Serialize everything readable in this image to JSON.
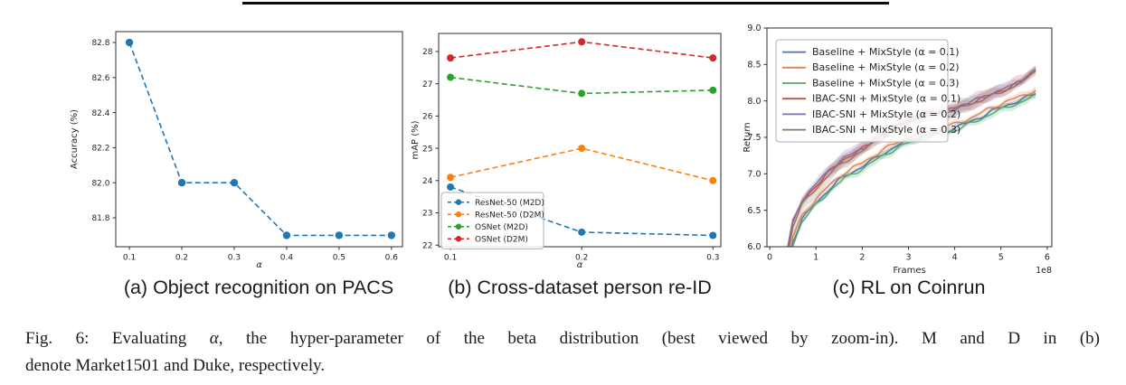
{
  "caption": {
    "line1_prefix": "Fig. 6: Evaluating ",
    "alpha": "α",
    "line1_suffix": ", the hyper-parameter of the beta distribution (best viewed by zoom-in). M and D in (b)",
    "line2": "denote Market1501 and Duke, respectively."
  },
  "chart_data": [
    {
      "type": "line",
      "title": "(a) Object recognition on PACS",
      "xlabel": "α",
      "ylabel": "Accuracy (%)",
      "xlim": [
        0.074,
        0.621
      ],
      "ylim": [
        81.635,
        82.862
      ],
      "xticks": [
        0.1,
        0.2,
        0.3,
        0.4,
        0.5,
        0.6
      ],
      "xtick_labels": [
        "0.1",
        "0.2",
        "0.3",
        "0.4",
        "0.5",
        "0.6"
      ],
      "yticks": [
        81.8,
        82.0,
        82.2,
        82.4,
        82.6,
        82.8
      ],
      "ytick_labels": [
        "81.8",
        "82.0",
        "82.2",
        "82.4",
        "82.6",
        "82.8"
      ],
      "grid": false,
      "legend_position": null,
      "x": [
        0.1,
        0.2,
        0.3,
        0.4,
        0.5,
        0.6
      ],
      "series": [
        {
          "name": "",
          "color": "#1f77b4",
          "dashed": true,
          "marker": true,
          "values": [
            82.8,
            82.0,
            82.0,
            81.7,
            81.7,
            81.7
          ]
        }
      ]
    },
    {
      "type": "line",
      "title": "(b) Cross-dataset person re-ID",
      "xlabel": "α",
      "ylabel": "mAP (%)",
      "xlim": [
        0.091,
        0.306
      ],
      "ylim": [
        21.95,
        28.56
      ],
      "xticks": [
        0.1,
        0.2,
        0.3
      ],
      "xtick_labels": [
        "0.1",
        "0.2",
        "0.3"
      ],
      "yticks": [
        22,
        23,
        24,
        25,
        26,
        27,
        28
      ],
      "ytick_labels": [
        "22",
        "23",
        "24",
        "25",
        "26",
        "27",
        "28"
      ],
      "grid": false,
      "legend_position": "lower left",
      "x": [
        0.1,
        0.2,
        0.3
      ],
      "series": [
        {
          "name": "ResNet-50 (M2D)",
          "color": "#1f77b4",
          "dashed": true,
          "marker": true,
          "values": [
            23.8,
            22.4,
            22.3
          ]
        },
        {
          "name": "ResNet-50 (D2M)",
          "color": "#ff7f0e",
          "dashed": true,
          "marker": true,
          "values": [
            24.1,
            25.0,
            24.0
          ]
        },
        {
          "name": "OSNet (M2D)",
          "color": "#2ca02c",
          "dashed": true,
          "marker": true,
          "values": [
            27.2,
            26.7,
            26.8
          ]
        },
        {
          "name": "OSNet (D2M)",
          "color": "#d62728",
          "dashed": true,
          "marker": true,
          "values": [
            27.8,
            28.3,
            27.8
          ]
        }
      ]
    },
    {
      "type": "line",
      "title": "(c) RL on Coinrun",
      "xlabel": "Frames",
      "ylabel": "Return",
      "x_offset_label": "1e8",
      "xlim": [
        -0.06,
        6.1
      ],
      "ylim": [
        6.0,
        9.0
      ],
      "xticks": [
        0,
        1,
        2,
        3,
        4,
        5,
        6
      ],
      "xtick_labels": [
        "0",
        "1",
        "2",
        "3",
        "4",
        "5",
        "6"
      ],
      "yticks": [
        6.0,
        6.5,
        7.0,
        7.5,
        8.0,
        8.5,
        9.0
      ],
      "ytick_labels": [
        "6.0",
        "6.5",
        "7.0",
        "7.5",
        "8.0",
        "8.5",
        "9.0"
      ],
      "grid": false,
      "legend_position": "upper left",
      "x": [
        0.3,
        0.5,
        0.7,
        1.0,
        1.3,
        1.6,
        2.0,
        2.4,
        2.8,
        3.2,
        3.6,
        4.0,
        4.4,
        4.8,
        5.2,
        5.5,
        5.75
      ],
      "series": [
        {
          "name": "Baseline + MixStyle (α = 0.1)",
          "color": "#4c72b0",
          "noisy": true,
          "band": 0.055,
          "values": [
            5.38,
            6.08,
            6.38,
            6.6,
            6.8,
            6.96,
            7.1,
            7.26,
            7.4,
            7.5,
            7.56,
            7.63,
            7.73,
            7.86,
            7.96,
            8.03,
            8.1
          ]
        },
        {
          "name": "Baseline + MixStyle (α = 0.2)",
          "color": "#dd8452",
          "noisy": true,
          "band": 0.055,
          "values": [
            5.43,
            6.13,
            6.43,
            6.65,
            6.85,
            7.01,
            7.15,
            7.31,
            7.45,
            7.55,
            7.61,
            7.68,
            7.78,
            7.91,
            8.01,
            8.08,
            8.15
          ]
        },
        {
          "name": "Baseline + MixStyle (α = 0.3)",
          "color": "#55a868",
          "noisy": true,
          "band": 0.055,
          "values": [
            5.25,
            6.02,
            6.35,
            6.57,
            6.77,
            6.93,
            7.07,
            7.23,
            7.37,
            7.47,
            7.53,
            7.6,
            7.7,
            7.83,
            7.93,
            8.0,
            8.08
          ]
        },
        {
          "name": "IBAC-SNI + MixStyle (α = 0.1)",
          "color": "#c44e52",
          "noisy": true,
          "band": 0.085,
          "values": [
            5.62,
            6.32,
            6.62,
            6.84,
            7.04,
            7.2,
            7.34,
            7.52,
            7.67,
            7.8,
            7.85,
            7.9,
            7.99,
            8.09,
            8.19,
            8.29,
            8.42
          ]
        },
        {
          "name": "IBAC-SNI + MixStyle (α = 0.2)",
          "color": "#8172b3",
          "noisy": true,
          "band": 0.085,
          "values": [
            5.68,
            6.36,
            6.64,
            6.86,
            7.06,
            7.21,
            7.35,
            7.53,
            7.66,
            7.77,
            7.83,
            7.89,
            8.0,
            8.1,
            8.2,
            8.3,
            8.43
          ]
        },
        {
          "name": "IBAC-SNI + MixStyle (α = 0.3)",
          "color": "#937860",
          "noisy": true,
          "band": 0.105,
          "values": [
            5.55,
            6.28,
            6.58,
            6.8,
            7.0,
            7.16,
            7.31,
            7.49,
            7.64,
            7.78,
            7.84,
            7.88,
            7.97,
            8.07,
            8.17,
            8.28,
            8.45
          ]
        }
      ]
    }
  ]
}
